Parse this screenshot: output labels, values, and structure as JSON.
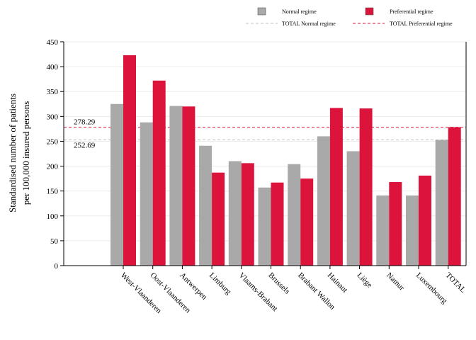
{
  "chart_data": {
    "type": "bar",
    "title": "",
    "xlabel": "",
    "ylabel": [
      "Standardised number of patients",
      "per 100,000 insured persons"
    ],
    "ylim": [
      0,
      450
    ],
    "yticks": [
      0,
      50,
      100,
      150,
      200,
      250,
      300,
      350,
      400,
      450
    ],
    "grid": true,
    "legend_position": "top-right",
    "categories": [
      "West-Vlaanderen",
      "Oost-Vlaanderen",
      "Antwerpen",
      "Limburg",
      "Vlaams-Brabant",
      "Brussels",
      "Brabant Wallon",
      "Hainaut",
      "Liège",
      "Namur",
      "Luxembourg",
      "TOTAL"
    ],
    "series": [
      {
        "name": "Normal regime",
        "color": "#a9a9a9",
        "values": [
          325,
          288,
          321,
          241,
          210,
          157,
          204,
          260,
          230,
          141,
          141,
          252.69
        ]
      },
      {
        "name": "Preferential regime",
        "color": "#dc143c",
        "values": [
          423,
          372,
          320,
          187,
          206,
          167,
          175,
          317,
          316,
          168,
          181,
          278.29
        ]
      }
    ],
    "reference_lines": [
      {
        "name": "TOTAL Normal regime",
        "value": 252.69,
        "label": "252.69",
        "color": "#c0c0c0"
      },
      {
        "name": "TOTAL Preferential regime",
        "value": 278.29,
        "label": "278.29",
        "color": "#dc143c"
      }
    ]
  }
}
